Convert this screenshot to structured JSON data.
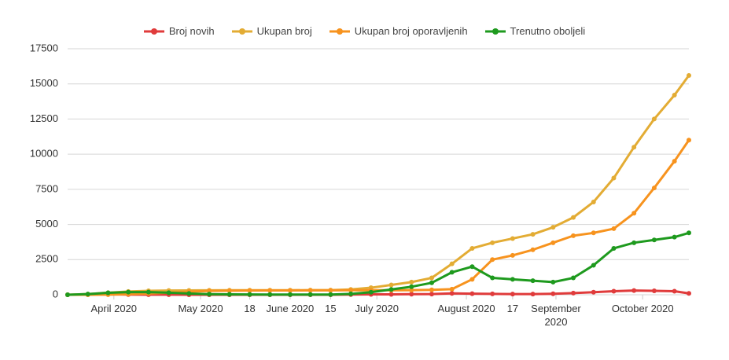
{
  "chart_data": {
    "type": "line",
    "x": [
      "2020-03-16",
      "2020-03-23",
      "2020-03-30",
      "2020-04-06",
      "2020-04-13",
      "2020-04-20",
      "2020-04-27",
      "2020-05-04",
      "2020-05-11",
      "2020-05-18",
      "2020-05-25",
      "2020-06-01",
      "2020-06-08",
      "2020-06-15",
      "2020-06-22",
      "2020-06-29",
      "2020-07-06",
      "2020-07-13",
      "2020-07-20",
      "2020-07-27",
      "2020-08-03",
      "2020-08-10",
      "2020-08-17",
      "2020-08-24",
      "2020-08-31",
      "2020-09-07",
      "2020-09-14",
      "2020-09-21",
      "2020-09-28",
      "2020-10-05",
      "2020-10-12",
      "2020-10-17"
    ],
    "series": [
      {
        "name": "Broj novih",
        "color": "#e03b3b",
        "values": [
          0,
          10,
          25,
          15,
          8,
          5,
          2,
          1,
          1,
          1,
          1,
          1,
          1,
          2,
          15,
          25,
          30,
          40,
          50,
          100,
          80,
          60,
          50,
          50,
          70,
          120,
          180,
          250,
          300,
          280,
          250,
          100
        ]
      },
      {
        "name": "Ukupan broj",
        "color": "#e3ac34",
        "values": [
          0,
          50,
          150,
          230,
          280,
          300,
          310,
          315,
          318,
          320,
          322,
          324,
          326,
          330,
          380,
          500,
          700,
          900,
          1200,
          2200,
          3300,
          3700,
          4000,
          4300,
          4800,
          5500,
          6600,
          8300,
          10500,
          12500,
          14200,
          15600
        ]
      },
      {
        "name": "Ukupan broj oporavljenih",
        "color": "#f7931e",
        "values": [
          0,
          0,
          10,
          40,
          90,
          150,
          220,
          270,
          290,
          300,
          305,
          310,
          312,
          315,
          318,
          320,
          320,
          330,
          350,
          400,
          1100,
          2500,
          2800,
          3200,
          3700,
          4200,
          4400,
          4700,
          5800,
          7600,
          9500,
          11000
        ]
      },
      {
        "name": "Trenutno oboljeli",
        "color": "#1e9a1e",
        "values": [
          0,
          50,
          140,
          190,
          190,
          150,
          90,
          45,
          28,
          20,
          17,
          14,
          14,
          15,
          62,
          180,
          380,
          570,
          850,
          1600,
          2000,
          1200,
          1100,
          1000,
          900,
          1200,
          2100,
          3300,
          3700,
          3900,
          4100,
          4400
        ]
      }
    ],
    "xlim": [
      "2020-03-16",
      "2020-10-17"
    ],
    "xticks": [
      {
        "value": "2020-04-01",
        "label": "April 2020"
      },
      {
        "value": "2020-05-01",
        "label": "May 2020"
      },
      {
        "value": "2020-05-18",
        "label": "18"
      },
      {
        "value": "2020-06-01",
        "label": "June 2020"
      },
      {
        "value": "2020-06-15",
        "label": "15"
      },
      {
        "value": "2020-07-01",
        "label": "July 2020"
      },
      {
        "value": "2020-08-01",
        "label": "August 2020"
      },
      {
        "value": "2020-08-17",
        "label": "17"
      },
      {
        "value": "2020-09-01",
        "label": "September 2020"
      },
      {
        "value": "2020-10-01",
        "label": "October 2020"
      }
    ],
    "ylim": [
      0,
      17500
    ],
    "yticks": [
      0,
      2500,
      5000,
      7500,
      10000,
      12500,
      15000,
      17500
    ],
    "grid": true,
    "legend": "top"
  }
}
